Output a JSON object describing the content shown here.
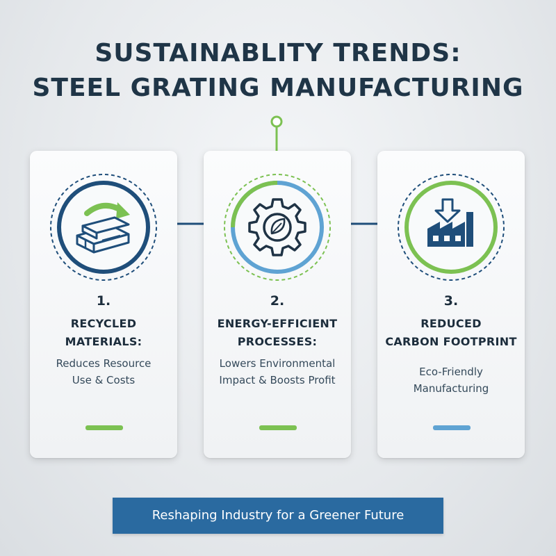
{
  "title": {
    "line1": "SUSTAINABLITY TRENDS:",
    "line2": "STEEL GRATING MANUFACTURING"
  },
  "cards": [
    {
      "number": "1.",
      "heading_line1": "RECYCLED",
      "heading_line2": "MATERIALS:",
      "desc_line1": "Reduces Resource",
      "desc_line2": "Use & Costs",
      "icon": "recycled-steel-icon",
      "accent": "#7cc152"
    },
    {
      "number": "2.",
      "heading_line1": "ENERGY-EFFICIENT",
      "heading_line2": "PROCESSES:",
      "desc_line1": "Lowers Environmental",
      "desc_line2": "Impact & Boosts Profit",
      "icon": "gear-leaf-icon",
      "accent": "#7cc152"
    },
    {
      "number": "3.",
      "heading_line1": "REDUCED",
      "heading_line2": "CARBON FOOTPRINT",
      "desc_line1": "Eco-Friendly",
      "desc_line2": "Manufacturing",
      "icon": "factory-down-arrow-icon",
      "accent": "#5fa3d3"
    }
  ],
  "banner": "Reshaping Industry for a Greener Future",
  "colors": {
    "navy": "#1f4e7a",
    "green": "#7cc152",
    "light_blue": "#5fa3d3",
    "banner": "#2a6aa0"
  }
}
